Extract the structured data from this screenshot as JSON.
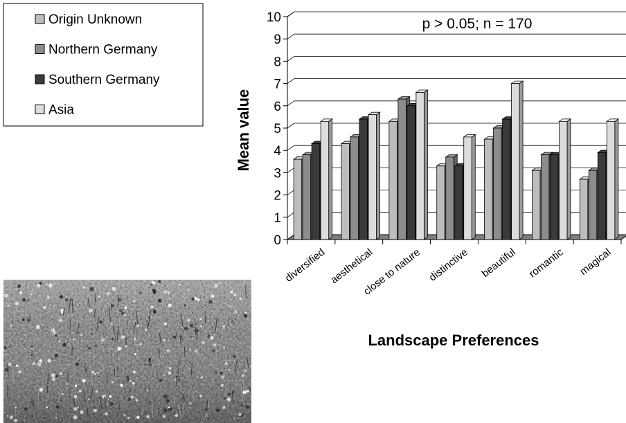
{
  "chart_data": {
    "type": "bar",
    "annotation": "p > 0.05; n = 170",
    "xlabel": "Landscape Preferences",
    "ylabel": "Mean value",
    "ylim": [
      0,
      10
    ],
    "yticks": [
      "0",
      "1",
      "2",
      "3",
      "4",
      "5",
      "6",
      "7",
      "8",
      "9",
      "10"
    ],
    "grid": true,
    "legend_position": "top-left",
    "categories": [
      "diversified",
      "aesthetical",
      "close to nature",
      "distinctive",
      "beautiful",
      "romantic",
      "magical"
    ],
    "series": [
      {
        "name": "Origin Unknown",
        "color": "#bdbdbd",
        "values": [
          3.6,
          4.3,
          5.3,
          3.3,
          4.5,
          3.1,
          2.7
        ]
      },
      {
        "name": "Northern Germany",
        "color": "#8c8c8c",
        "values": [
          3.8,
          4.6,
          6.3,
          3.7,
          5.0,
          3.8,
          3.1
        ]
      },
      {
        "name": "Southern Germany",
        "color": "#3a3a3a",
        "values": [
          4.3,
          5.4,
          6.0,
          3.3,
          5.4,
          3.8,
          3.9
        ]
      },
      {
        "name": "Asia",
        "color": "#dcdcdc",
        "values": [
          5.3,
          5.6,
          6.6,
          4.6,
          7.0,
          5.3,
          5.3
        ]
      }
    ]
  },
  "photo": {
    "subject": "meadow-photo"
  }
}
